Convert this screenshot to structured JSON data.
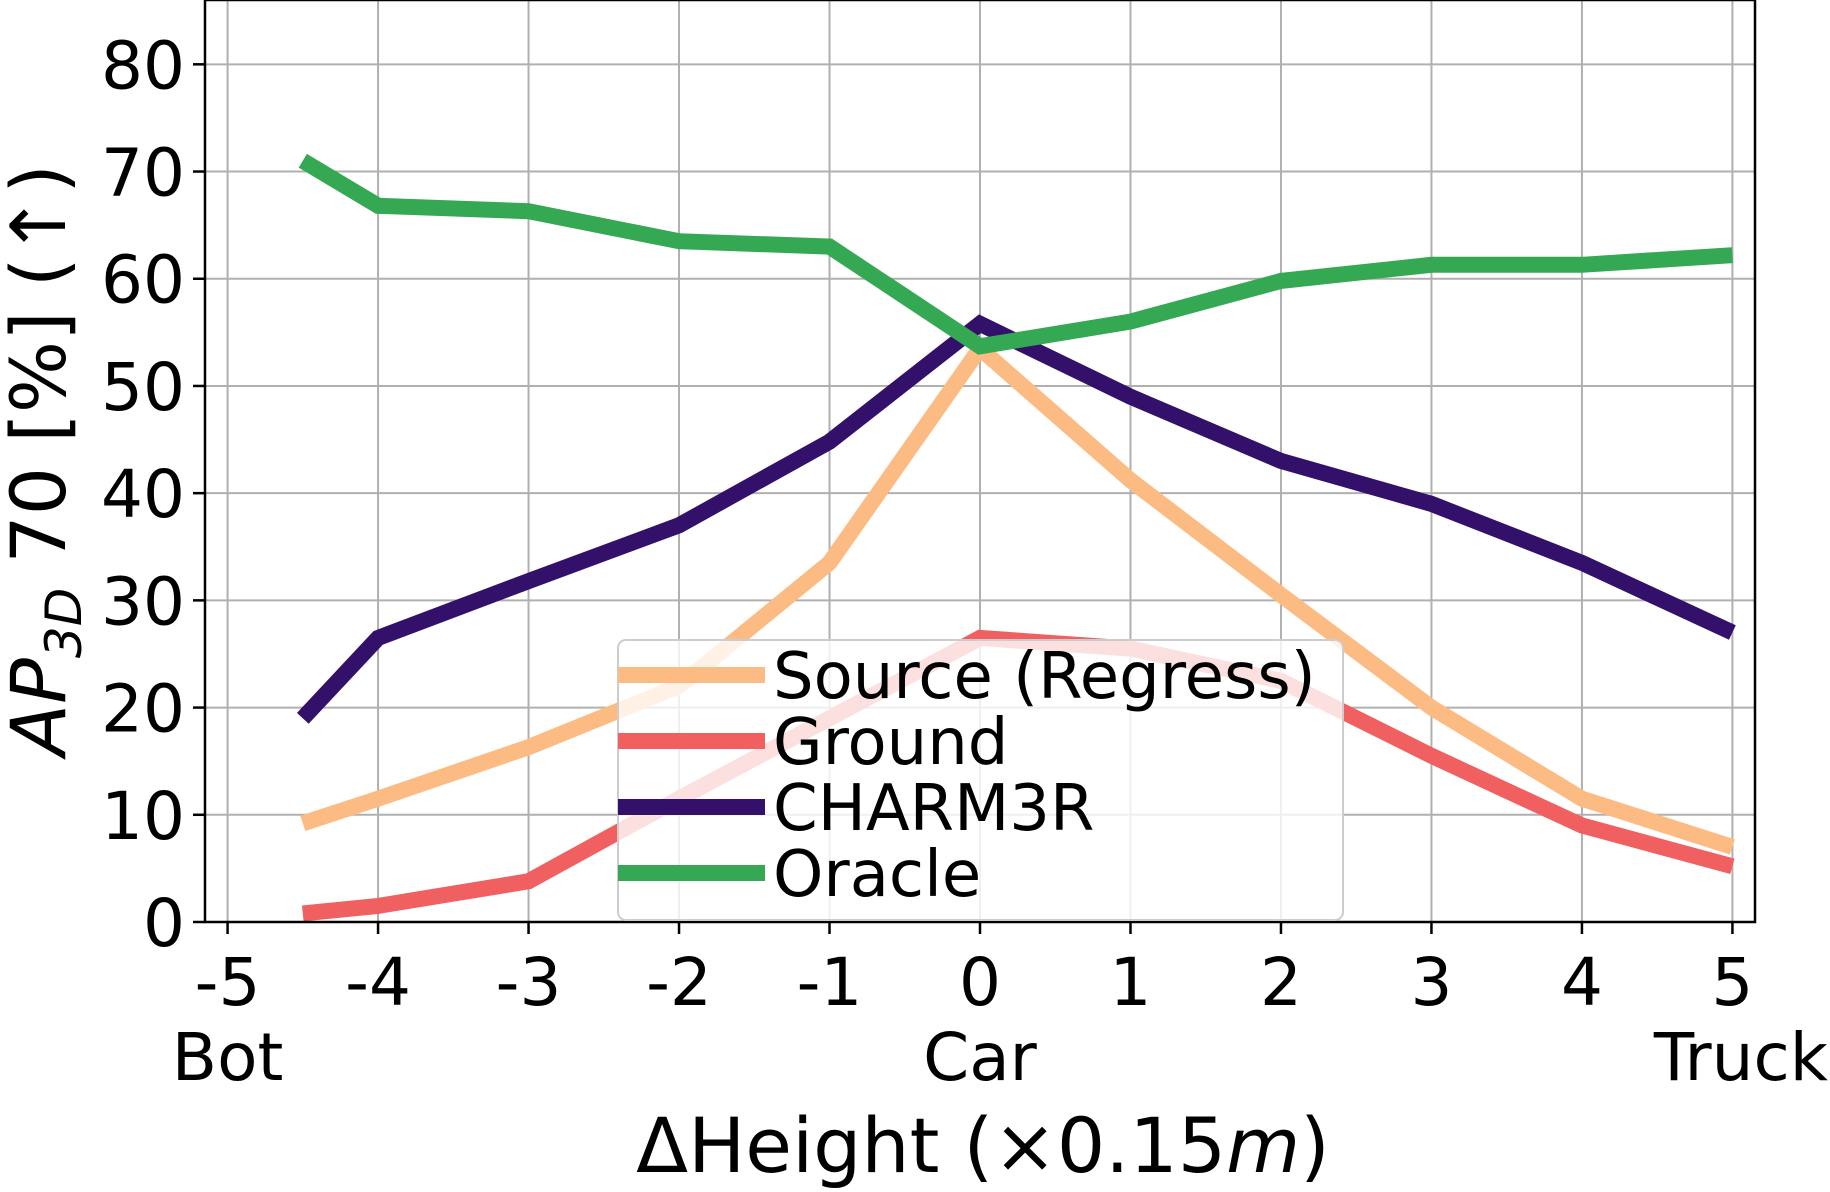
{
  "chart_data": {
    "type": "line",
    "xlabel_prefix": "ΔHeight (×0.15",
    "xlabel_unit": "m",
    "xlabel_suffix": ")",
    "ylabel_main": "AP",
    "ylabel_sub": "3D",
    "ylabel_rest": " 70 [%] (↑)",
    "x": [
      -4.5,
      -4,
      -3,
      -2,
      -1,
      0,
      1,
      2,
      3,
      4,
      5
    ],
    "xlim": [
      -5.15,
      5.15
    ],
    "ylim": [
      0,
      86
    ],
    "xticks": [
      {
        "value": -5,
        "label": "-5"
      },
      {
        "value": -4,
        "label": "-4"
      },
      {
        "value": -3,
        "label": "-3"
      },
      {
        "value": -2,
        "label": "-2"
      },
      {
        "value": -1,
        "label": "-1"
      },
      {
        "value": 0,
        "label": "0"
      },
      {
        "value": 1,
        "label": "1"
      },
      {
        "value": 2,
        "label": "2"
      },
      {
        "value": 3,
        "label": "3"
      },
      {
        "value": 4,
        "label": "4"
      },
      {
        "value": 5,
        "label": "5"
      }
    ],
    "yticks": [
      {
        "value": 0,
        "label": "0"
      },
      {
        "value": 10,
        "label": "10"
      },
      {
        "value": 20,
        "label": "20"
      },
      {
        "value": 30,
        "label": "30"
      },
      {
        "value": 40,
        "label": "40"
      },
      {
        "value": 50,
        "label": "50"
      },
      {
        "value": 60,
        "label": "60"
      },
      {
        "value": 70,
        "label": "70"
      },
      {
        "value": 80,
        "label": "80"
      }
    ],
    "category_labels": [
      {
        "value": -5,
        "label": "Bot"
      },
      {
        "value": 0,
        "label": "Car"
      },
      {
        "value": 5,
        "label": "Truck"
      }
    ],
    "grid": true,
    "legend_position": "lower-center",
    "series": [
      {
        "name": "Source (Regress)",
        "color": "#fdbb84",
        "values": [
          9.2,
          11.5,
          16.3,
          22.0,
          33.5,
          53.5,
          41.2,
          30.5,
          20.0,
          11.5,
          7.0
        ]
      },
      {
        "name": "Ground",
        "color": "#f06060",
        "values": [
          0.8,
          1.5,
          3.8,
          11.5,
          19.0,
          26.5,
          25.5,
          22.5,
          15.5,
          9.0,
          5.2
        ]
      },
      {
        "name": "CHARM3R",
        "color": "#33106a",
        "values": [
          19.0,
          26.5,
          31.8,
          37.0,
          44.8,
          55.8,
          49.0,
          43.0,
          39.0,
          33.5,
          27.0
        ]
      },
      {
        "name": "Oracle",
        "color": "#35a853",
        "values": [
          71.0,
          66.8,
          66.3,
          63.5,
          63.0,
          53.7,
          56.0,
          59.8,
          61.3,
          61.3,
          62.2
        ]
      }
    ]
  }
}
